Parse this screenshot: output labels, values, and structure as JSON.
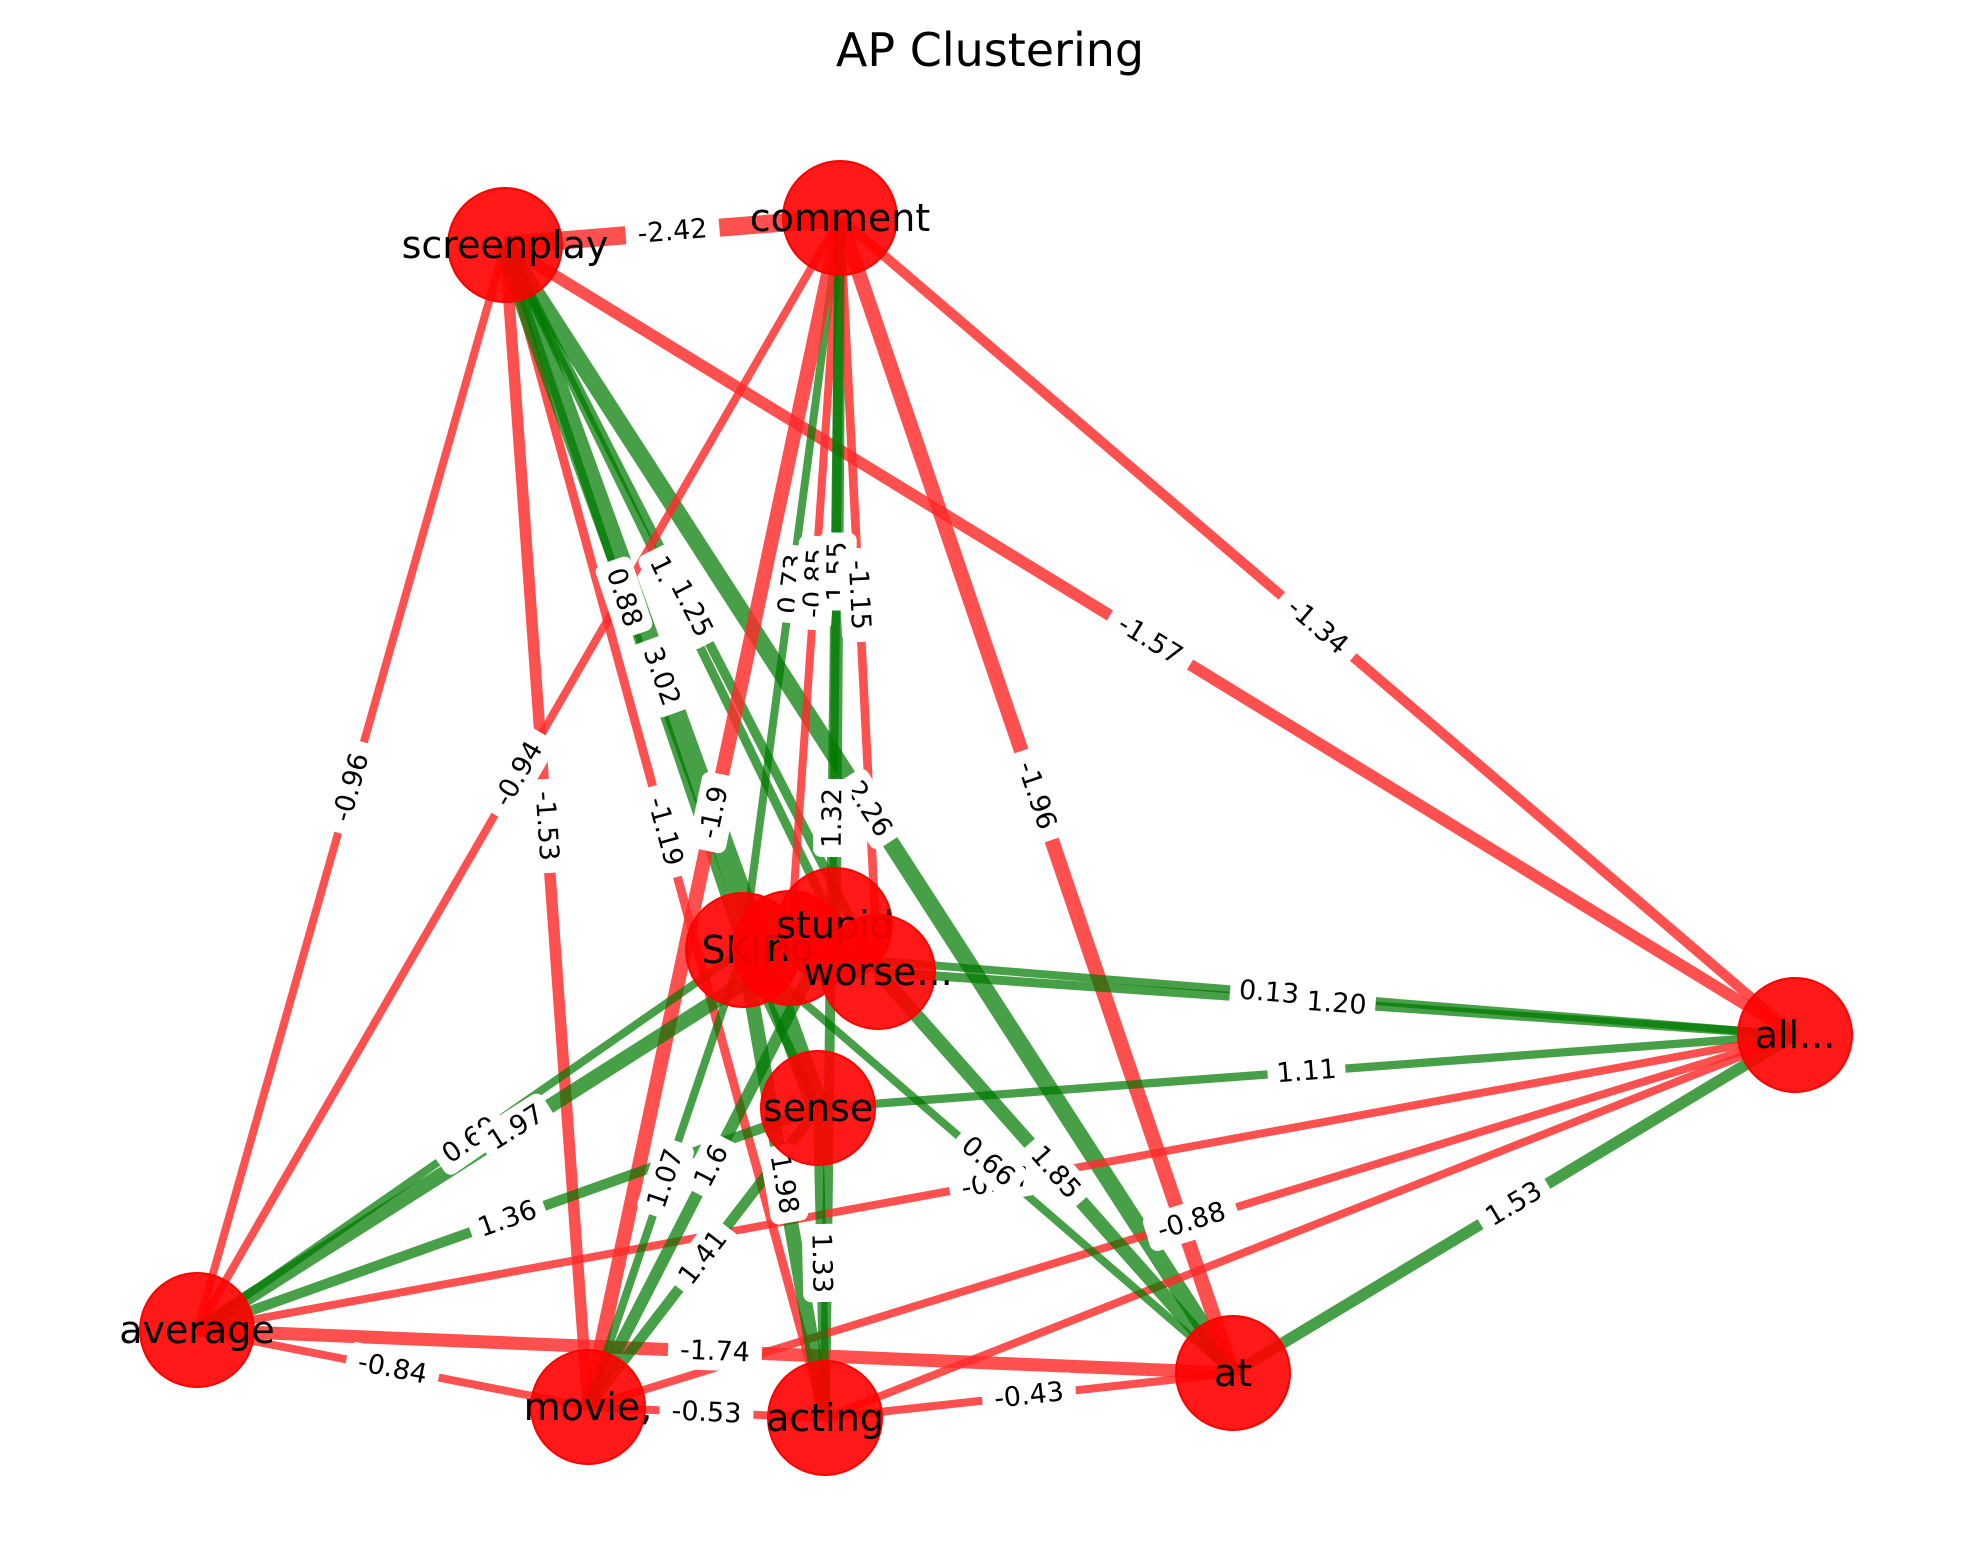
{
  "title": "AP Clustering",
  "colors": {
    "node": "#ff0000",
    "positive_edge": "#007a00",
    "negative_edge": "#ff2a2a",
    "background": "#ffffff"
  },
  "nodes": [
    {
      "id": "screenplay",
      "label": "screenplay"
    },
    {
      "id": "comment",
      "label": "comment"
    },
    {
      "id": "all",
      "label": "all..."
    },
    {
      "id": "average",
      "label": "average"
    },
    {
      "id": "movie",
      "label": "movie,"
    },
    {
      "id": "acting",
      "label": "acting"
    },
    {
      "id": "at",
      "label": "at"
    },
    {
      "id": "SKIP",
      "label": "SKIP"
    },
    {
      "id": "no",
      "label": "no"
    },
    {
      "id": "stupid",
      "label": "stupid"
    },
    {
      "id": "worse",
      "label": "worse..."
    },
    {
      "id": "sense",
      "label": "sense"
    }
  ],
  "edges": [
    {
      "source": "screenplay",
      "target": "comment",
      "weight": -2.42,
      "label": "-2.42"
    },
    {
      "source": "screenplay",
      "target": "average",
      "weight": -0.96,
      "label": "-0.96"
    },
    {
      "source": "screenplay",
      "target": "movie",
      "weight": -1.53,
      "label": "-1.53"
    },
    {
      "source": "screenplay",
      "target": "acting",
      "weight": -1.19,
      "label": "-1.19"
    },
    {
      "source": "screenplay",
      "target": "all",
      "weight": -1.57,
      "label": "-1.57"
    },
    {
      "source": "screenplay",
      "target": "SKIP",
      "weight": 0.88,
      "label": "0.88"
    },
    {
      "source": "screenplay",
      "target": "stupid",
      "weight": 1.19,
      "label": "1.19"
    },
    {
      "source": "screenplay",
      "target": "worse",
      "weight": 1.25,
      "label": "1.25"
    },
    {
      "source": "screenplay",
      "target": "sense",
      "weight": 3.02,
      "label": "3.02"
    },
    {
      "source": "screenplay",
      "target": "at",
      "weight": 2.26,
      "label": "2.26"
    },
    {
      "source": "comment",
      "target": "all",
      "weight": -1.34,
      "label": "-1.34"
    },
    {
      "source": "comment",
      "target": "at",
      "weight": -1.96,
      "label": "-1.96"
    },
    {
      "source": "comment",
      "target": "average",
      "weight": -0.94,
      "label": "-0.94"
    },
    {
      "source": "comment",
      "target": "SKIP",
      "weight": 0.73,
      "label": "0.73"
    },
    {
      "source": "comment",
      "target": "no",
      "weight": -0.85,
      "label": "-0.85"
    },
    {
      "source": "comment",
      "target": "stupid",
      "weight": 1.55,
      "label": "1.55"
    },
    {
      "source": "comment",
      "target": "worse",
      "weight": -1.15,
      "label": "-1.15"
    },
    {
      "source": "comment",
      "target": "movie",
      "weight": -1.9,
      "label": "-1.9"
    },
    {
      "source": "comment",
      "target": "acting",
      "weight": 1.32,
      "label": "1.32"
    },
    {
      "source": "all",
      "target": "SKIP",
      "weight": 0.13,
      "label": "0.13"
    },
    {
      "source": "all",
      "target": "worse",
      "weight": 1.2,
      "label": "1.20"
    },
    {
      "source": "all",
      "target": "sense",
      "weight": 1.11,
      "label": "1.11"
    },
    {
      "source": "all",
      "target": "average",
      "weight": -0.87,
      "label": "-0.87"
    },
    {
      "source": "all",
      "target": "movie",
      "weight": -0.88,
      "label": "-0.88"
    },
    {
      "source": "all",
      "target": "at",
      "weight": 1.53,
      "label": "1.53"
    },
    {
      "source": "all",
      "target": "acting",
      "weight": -0.43,
      "label": ""
    },
    {
      "source": "average",
      "target": "SKIP",
      "weight": 0.69,
      "label": "0.69"
    },
    {
      "source": "average",
      "target": "stupid",
      "weight": 1.97,
      "label": "1.97"
    },
    {
      "source": "average",
      "target": "sense",
      "weight": 1.36,
      "label": "1.36"
    },
    {
      "source": "average",
      "target": "movie",
      "weight": -0.84,
      "label": "-0.84"
    },
    {
      "source": "average",
      "target": "at",
      "weight": -1.74,
      "label": "-1.74"
    },
    {
      "source": "movie",
      "target": "SKIP",
      "weight": 1.07,
      "label": "1.07"
    },
    {
      "source": "movie",
      "target": "sense",
      "weight": 1.41,
      "label": "1.41"
    },
    {
      "source": "movie",
      "target": "stupid",
      "weight": 1.6,
      "label": "1.6"
    },
    {
      "source": "movie",
      "target": "acting",
      "weight": -0.53,
      "label": "-0.53"
    },
    {
      "source": "acting",
      "target": "SKIP",
      "weight": 1.98,
      "label": "1.98"
    },
    {
      "source": "acting",
      "target": "sense",
      "weight": 1.33,
      "label": "1.33"
    },
    {
      "source": "acting",
      "target": "at",
      "weight": -0.43,
      "label": "-0.43"
    },
    {
      "source": "at",
      "target": "SKIP",
      "weight": 0.66,
      "label": "0.66"
    },
    {
      "source": "at",
      "target": "worse",
      "weight": 1.85,
      "label": "1.85"
    },
    {
      "source": "SKIP",
      "target": "sense",
      "weight": 1.2,
      "label": ""
    }
  ]
}
